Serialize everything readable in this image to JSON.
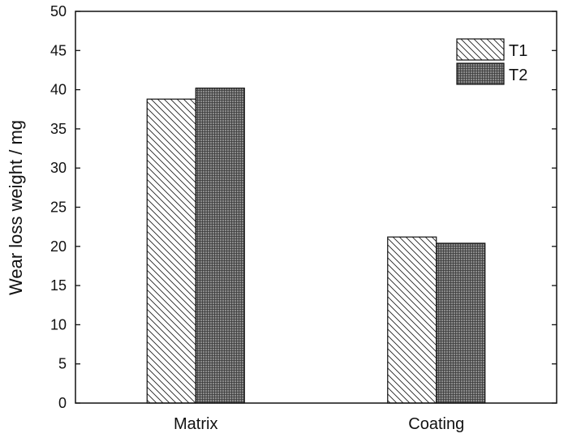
{
  "chart_data": {
    "type": "bar",
    "title": "",
    "xlabel": "",
    "ylabel": "Wear loss weight / mg",
    "ylim": [
      0,
      50
    ],
    "yticks": [
      0,
      5,
      10,
      15,
      20,
      25,
      30,
      35,
      40,
      45,
      50
    ],
    "categories": [
      "Matrix",
      "Coating"
    ],
    "series": [
      {
        "name": "T1",
        "values": [
          38.8,
          21.2
        ],
        "pattern": "diagonal-hatch"
      },
      {
        "name": "T2",
        "values": [
          40.2,
          20.4
        ],
        "pattern": "dense-crosshatch"
      }
    ],
    "legend_position": "top-right",
    "grid": false
  }
}
